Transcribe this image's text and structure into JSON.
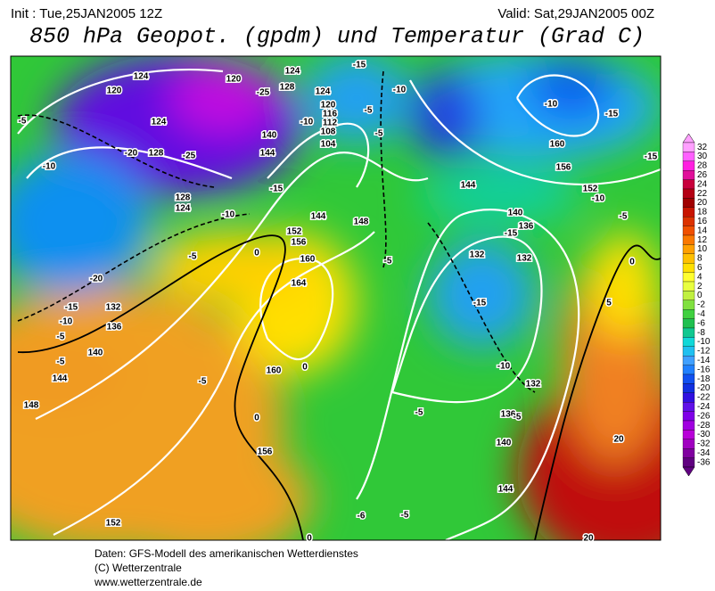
{
  "header": {
    "init": "Init : Tue,25JAN2005 12Z",
    "valid": "Valid: Sat,29JAN2005 00Z",
    "title": "850 hPa Geopot. (gpdm) und Temperatur (Grad C)"
  },
  "map_labels": [
    "124",
    "120",
    "124",
    "128",
    "120",
    "124",
    "128",
    "124",
    "120",
    "116",
    "112",
    "108",
    "104",
    "140",
    "144",
    "128",
    "124",
    "144",
    "148",
    "152",
    "156",
    "160",
    "164",
    "160",
    "156",
    "152",
    "148",
    "144",
    "140",
    "136",
    "132",
    "144",
    "140",
    "136",
    "132",
    "132",
    "132",
    "136",
    "140",
    "144",
    "160",
    "156",
    "152",
    "-5",
    "-10",
    "-20",
    "-25",
    "-25",
    "-15",
    "-10",
    "-5",
    "-5",
    "-10",
    "-15",
    "-10",
    "-10",
    "-15",
    "-15",
    "-10",
    "-5",
    "-15",
    "-5",
    "-15",
    "-20",
    "-15",
    "-10",
    "-5",
    "-5",
    "-5",
    "0",
    "0",
    "0",
    "-5",
    "-5",
    "-10",
    "-5",
    "-6",
    "-5",
    "0",
    "5",
    "20",
    "0",
    "20"
  ],
  "legend": {
    "labels": [
      "32",
      "30",
      "28",
      "26",
      "24",
      "22",
      "20",
      "18",
      "16",
      "14",
      "12",
      "10",
      "8",
      "6",
      "4",
      "2",
      "0",
      "-2",
      "-4",
      "-6",
      "-8",
      "-10",
      "-12",
      "-14",
      "-16",
      "-18",
      "-20",
      "-22",
      "-24",
      "-26",
      "-28",
      "-30",
      "-32",
      "-34",
      "-36"
    ],
    "colors": [
      "#ffa0ff",
      "#ff60ff",
      "#ff20e0",
      "#e0109a",
      "#c8003c",
      "#b40014",
      "#a00000",
      "#c81400",
      "#dc3200",
      "#f05000",
      "#fa7800",
      "#ffa000",
      "#ffc000",
      "#ffe000",
      "#ffff30",
      "#e8ff40",
      "#c0f040",
      "#80e040",
      "#40d040",
      "#20c050",
      "#10c890",
      "#10d8d8",
      "#20c0f0",
      "#40a0ff",
      "#2080ff",
      "#1050f0",
      "#1030e0",
      "#3010e0",
      "#6010e8",
      "#8000e8",
      "#a000e0",
      "#b800d8",
      "#a000c0",
      "#8000a0",
      "#600080"
    ]
  },
  "footer": [
    "Daten: GFS-Modell des amerikanischen Wetterdienstes",
    "(C) Wetterzentrale",
    "www.wetterzentrale.de"
  ]
}
